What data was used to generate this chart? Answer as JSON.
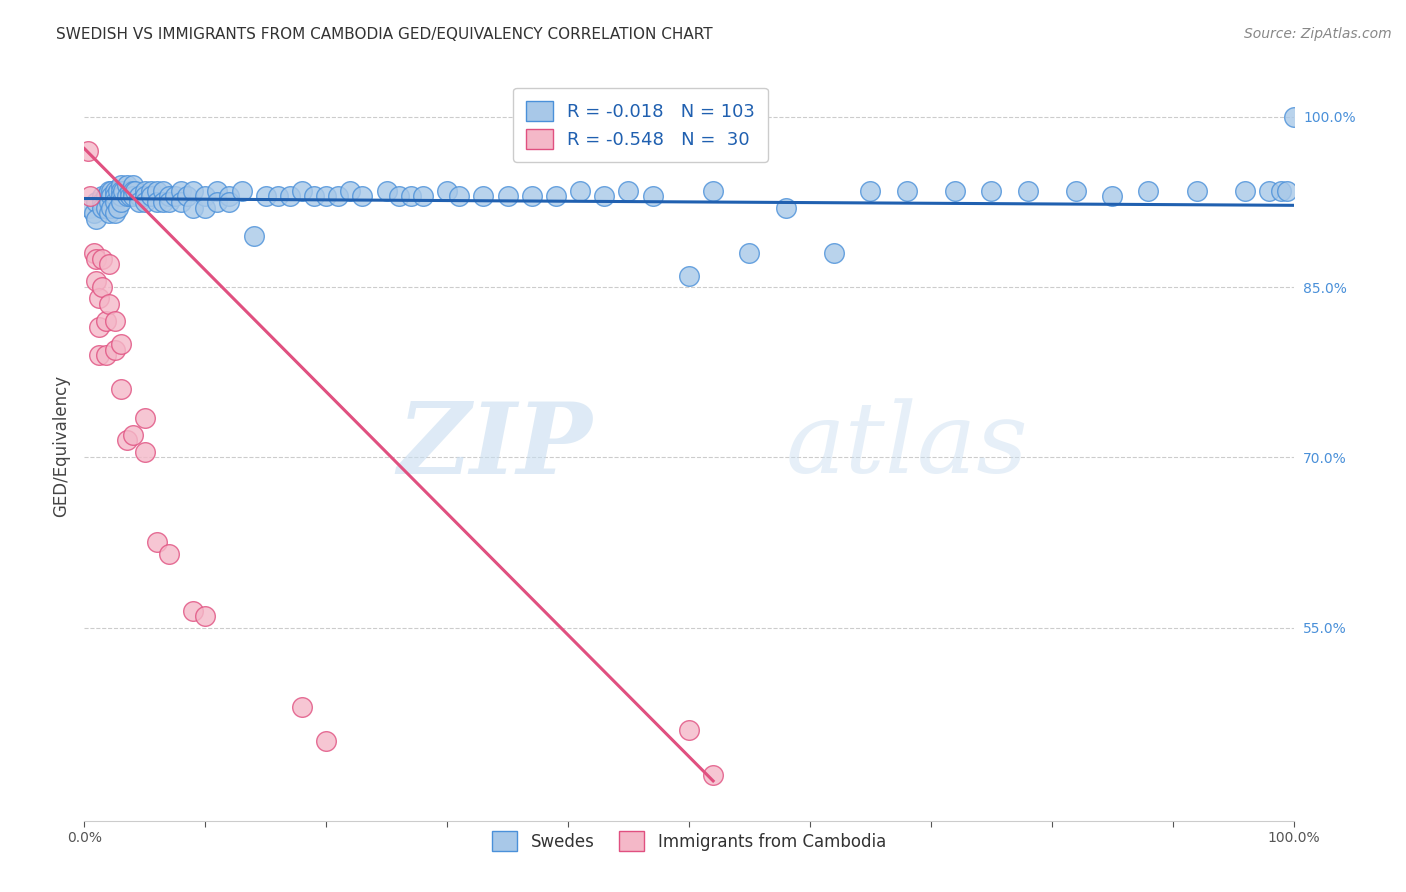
{
  "title": "SWEDISH VS IMMIGRANTS FROM CAMBODIA GED/EQUIVALENCY CORRELATION CHART",
  "source": "Source: ZipAtlas.com",
  "ylabel": "GED/Equivalency",
  "ytick_values": [
    1.0,
    0.85,
    0.7,
    0.55
  ],
  "legend_swedes": "Swedes",
  "legend_cambodia": "Immigrants from Cambodia",
  "watermark_zip": "ZIP",
  "watermark_atlas": "atlas",
  "blue_color": "#a8c8e8",
  "pink_color": "#f4b8c8",
  "blue_edge_color": "#4a90d9",
  "pink_edge_color": "#e05080",
  "blue_line_color": "#2060b0",
  "pink_line_color": "#e05080",
  "background_color": "#ffffff",
  "grid_color": "#cccccc",
  "ytick_color": "#4a90d9",
  "title_color": "#333333",
  "blue_scatter_x": [
    0.005,
    0.008,
    0.01,
    0.01,
    0.015,
    0.015,
    0.015,
    0.018,
    0.018,
    0.02,
    0.02,
    0.02,
    0.022,
    0.022,
    0.022,
    0.025,
    0.025,
    0.025,
    0.025,
    0.028,
    0.028,
    0.03,
    0.03,
    0.03,
    0.03,
    0.032,
    0.035,
    0.035,
    0.038,
    0.038,
    0.04,
    0.04,
    0.04,
    0.042,
    0.045,
    0.045,
    0.05,
    0.05,
    0.05,
    0.055,
    0.055,
    0.06,
    0.06,
    0.065,
    0.065,
    0.07,
    0.07,
    0.075,
    0.08,
    0.08,
    0.085,
    0.09,
    0.09,
    0.1,
    0.1,
    0.11,
    0.11,
    0.12,
    0.12,
    0.13,
    0.14,
    0.15,
    0.16,
    0.17,
    0.18,
    0.19,
    0.2,
    0.21,
    0.22,
    0.23,
    0.25,
    0.26,
    0.27,
    0.28,
    0.3,
    0.31,
    0.33,
    0.35,
    0.37,
    0.39,
    0.41,
    0.43,
    0.45,
    0.47,
    0.5,
    0.52,
    0.55,
    0.58,
    0.62,
    0.65,
    0.68,
    0.72,
    0.75,
    0.78,
    0.82,
    0.85,
    0.88,
    0.92,
    0.96,
    0.98,
    0.99,
    0.995,
    1.0
  ],
  "blue_scatter_y": [
    0.92,
    0.915,
    0.925,
    0.91,
    0.93,
    0.925,
    0.92,
    0.93,
    0.92,
    0.935,
    0.925,
    0.915,
    0.935,
    0.93,
    0.92,
    0.935,
    0.93,
    0.925,
    0.915,
    0.935,
    0.92,
    0.94,
    0.935,
    0.93,
    0.925,
    0.935,
    0.94,
    0.93,
    0.935,
    0.93,
    0.94,
    0.935,
    0.93,
    0.935,
    0.93,
    0.925,
    0.935,
    0.93,
    0.925,
    0.935,
    0.93,
    0.935,
    0.925,
    0.935,
    0.925,
    0.93,
    0.925,
    0.93,
    0.935,
    0.925,
    0.93,
    0.935,
    0.92,
    0.93,
    0.92,
    0.935,
    0.925,
    0.93,
    0.925,
    0.935,
    0.895,
    0.93,
    0.93,
    0.93,
    0.935,
    0.93,
    0.93,
    0.93,
    0.935,
    0.93,
    0.935,
    0.93,
    0.93,
    0.93,
    0.935,
    0.93,
    0.93,
    0.93,
    0.93,
    0.93,
    0.935,
    0.93,
    0.935,
    0.93,
    0.86,
    0.935,
    0.88,
    0.92,
    0.88,
    0.935,
    0.935,
    0.935,
    0.935,
    0.935,
    0.935,
    0.93,
    0.935,
    0.935,
    0.935,
    0.935,
    0.935,
    0.935,
    1.0
  ],
  "pink_scatter_x": [
    0.003,
    0.005,
    0.008,
    0.01,
    0.01,
    0.012,
    0.012,
    0.012,
    0.015,
    0.015,
    0.018,
    0.018,
    0.02,
    0.02,
    0.025,
    0.025,
    0.03,
    0.03,
    0.035,
    0.04,
    0.05,
    0.05,
    0.06,
    0.07,
    0.09,
    0.1,
    0.18,
    0.2,
    0.5,
    0.52
  ],
  "pink_scatter_y": [
    0.97,
    0.93,
    0.88,
    0.875,
    0.855,
    0.84,
    0.815,
    0.79,
    0.875,
    0.85,
    0.82,
    0.79,
    0.87,
    0.835,
    0.82,
    0.795,
    0.8,
    0.76,
    0.715,
    0.72,
    0.735,
    0.705,
    0.625,
    0.615,
    0.565,
    0.56,
    0.48,
    0.45,
    0.46,
    0.42
  ],
  "blue_line_x0": 0.0,
  "blue_line_x1": 1.0,
  "blue_line_y0": 0.928,
  "blue_line_y1": 0.922,
  "pink_line_x0": 0.0,
  "pink_line_x1": 0.52,
  "pink_line_y0": 0.972,
  "pink_line_y1": 0.415,
  "xmin": 0.0,
  "xmax": 1.0,
  "ymin": 0.38,
  "ymax": 1.04,
  "marker_size": 200
}
